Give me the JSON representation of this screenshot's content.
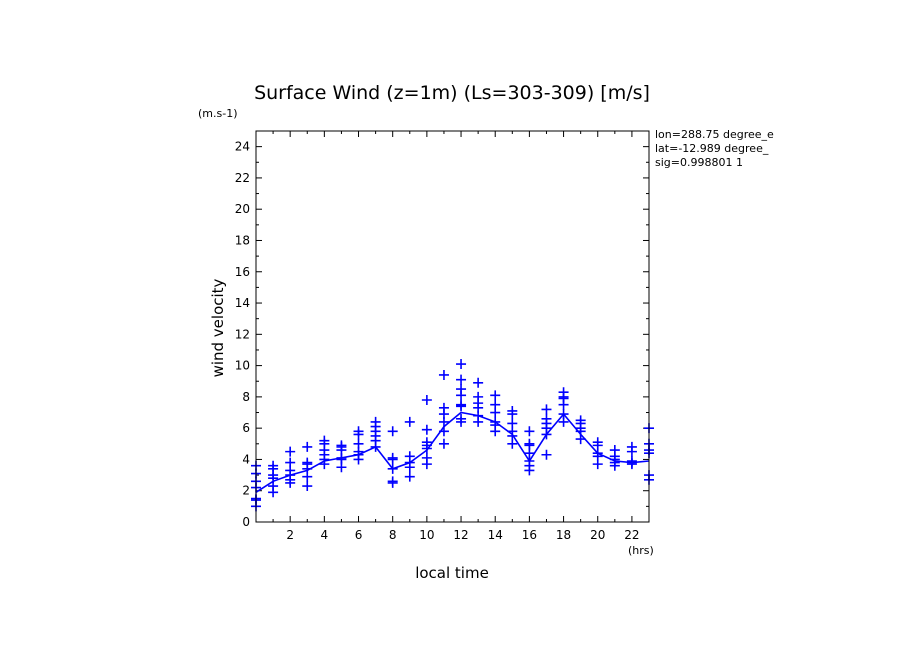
{
  "chart_data": {
    "type": "line",
    "title": "Surface Wind (z=1m) (Ls=303-309) [m/s]",
    "y_units": "(m.s-1)",
    "x_units": "(hrs)",
    "xlabel": "local time",
    "ylabel": "wind velocity",
    "xlim": [
      0,
      23
    ],
    "ylim": [
      0,
      25
    ],
    "x_ticks": [
      2,
      4,
      6,
      8,
      10,
      12,
      14,
      16,
      18,
      20,
      22
    ],
    "y_ticks": [
      0,
      2,
      4,
      6,
      8,
      10,
      12,
      14,
      16,
      18,
      20,
      22,
      24
    ],
    "info_lines": [
      "lon=288.75 degree_e",
      "lat=-12.989 degree_",
      "sig=0.998801 1"
    ],
    "colors": {
      "series": "#0000ff",
      "axes": "#000000"
    },
    "mean_series": {
      "x": [
        0,
        1,
        2,
        3,
        4,
        5,
        6,
        7,
        8,
        9,
        10,
        11,
        12,
        13,
        14,
        15,
        16,
        17,
        18,
        19,
        20,
        21,
        22,
        23
      ],
      "y": [
        1.9,
        2.6,
        3.0,
        3.3,
        3.9,
        4.1,
        4.3,
        4.8,
        3.4,
        3.8,
        4.6,
        6.1,
        7.0,
        6.8,
        6.4,
        5.6,
        3.9,
        5.6,
        6.9,
        5.6,
        4.4,
        3.9,
        3.8,
        3.9
      ]
    },
    "scatter_points": [
      {
        "x": 0,
        "values": [
          1.0,
          1.4,
          1.5,
          2.2,
          2.6,
          3.1,
          3.6
        ]
      },
      {
        "x": 1,
        "values": [
          1.9,
          2.3,
          2.8,
          3.0,
          3.4,
          3.6
        ]
      },
      {
        "x": 2,
        "values": [
          2.5,
          2.7,
          3.0,
          3.3,
          3.8,
          4.5
        ]
      },
      {
        "x": 3,
        "values": [
          2.3,
          2.9,
          3.4,
          3.7,
          3.8,
          4.8
        ]
      },
      {
        "x": 4,
        "values": [
          3.7,
          4.0,
          4.3,
          4.6,
          5.0,
          5.2
        ]
      },
      {
        "x": 5,
        "values": [
          3.5,
          4.0,
          4.1,
          4.6,
          4.8,
          4.9
        ]
      },
      {
        "x": 6,
        "values": [
          4.0,
          4.3,
          4.5,
          5.0,
          5.6,
          5.8
        ]
      },
      {
        "x": 7,
        "values": [
          4.8,
          5.2,
          5.5,
          5.8,
          6.1,
          6.4
        ]
      },
      {
        "x": 8,
        "values": [
          2.5,
          2.6,
          3.4,
          4.0,
          4.1,
          5.8
        ]
      },
      {
        "x": 9,
        "values": [
          2.9,
          3.5,
          3.8,
          4.2,
          6.4
        ]
      },
      {
        "x": 10,
        "values": [
          3.7,
          4.1,
          4.7,
          4.9,
          5.1,
          5.9,
          7.8
        ]
      },
      {
        "x": 11,
        "values": [
          5.0,
          5.8,
          6.4,
          6.9,
          7.3,
          9.4
        ]
      },
      {
        "x": 12,
        "values": [
          6.4,
          6.6,
          7.4,
          7.5,
          8.1,
          8.5,
          9.1,
          10.1
        ]
      },
      {
        "x": 13,
        "values": [
          6.4,
          6.8,
          7.3,
          7.6,
          8.0,
          8.9
        ]
      },
      {
        "x": 14,
        "values": [
          5.8,
          6.2,
          6.4,
          7.0,
          7.5,
          8.1
        ]
      },
      {
        "x": 15,
        "values": [
          5.0,
          5.5,
          5.8,
          6.3,
          6.9,
          7.1
        ]
      },
      {
        "x": 16,
        "values": [
          3.3,
          3.6,
          3.9,
          4.4,
          4.9,
          5.0,
          5.8
        ]
      },
      {
        "x": 17,
        "values": [
          4.3,
          5.6,
          6.0,
          6.3,
          6.6,
          7.2
        ]
      },
      {
        "x": 18,
        "values": [
          6.4,
          6.9,
          7.5,
          7.9,
          8.0,
          8.3
        ]
      },
      {
        "x": 19,
        "values": [
          5.3,
          5.8,
          6.0,
          6.3,
          6.5
        ]
      },
      {
        "x": 20,
        "values": [
          3.7,
          4.2,
          4.4,
          4.9,
          5.1
        ]
      },
      {
        "x": 21,
        "values": [
          3.6,
          3.8,
          4.0,
          4.2,
          4.6
        ]
      },
      {
        "x": 22,
        "values": [
          3.7,
          3.8,
          3.9,
          4.5,
          4.8
        ]
      },
      {
        "x": 23,
        "values": [
          2.7,
          3.0,
          4.4,
          4.6,
          5.0,
          6.0
        ]
      }
    ]
  }
}
